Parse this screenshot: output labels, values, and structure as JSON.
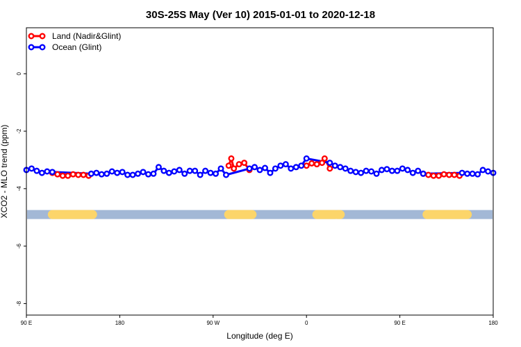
{
  "chart_data": {
    "type": "line",
    "title": "30S-25S May (Ver 10)   2015-01-01 to 2020-12-18",
    "xlabel": "Longitude (deg E)",
    "ylabel": "XCO2 - MLO trend (ppm)",
    "xlim": [
      90,
      450
    ],
    "ylim": [
      -8.4,
      1.6
    ],
    "x_ticks": [
      {
        "value": 90,
        "label": "90 E"
      },
      {
        "value": 162,
        "label": "180"
      },
      {
        "value": 234,
        "label": "90 W"
      },
      {
        "value": 306,
        "label": "0"
      },
      {
        "value": 378,
        "label": "90 E"
      },
      {
        "value": 450,
        "label": "180"
      }
    ],
    "y_ticks": [
      {
        "value": 0,
        "label": "0"
      },
      {
        "value": -2,
        "label": "-2"
      },
      {
        "value": -4,
        "label": "-4"
      },
      {
        "value": -6,
        "label": "-6"
      },
      {
        "value": -8,
        "label": "-8"
      }
    ],
    "legend_position": "top-left",
    "grid": false,
    "series": [
      {
        "name": "Land (Nadir&Glint)",
        "color": "#ff0000",
        "segments": [
          {
            "x": [
              110,
              114,
              118,
              122,
              126,
              130,
              134,
              138
            ],
            "y": [
              -3.45,
              -3.5,
              -3.55,
              -3.55,
              -3.5,
              -3.52,
              -3.52,
              -3.55
            ]
          },
          {
            "x": [
              246,
              248,
              250,
              254,
              258,
              262
            ],
            "y": [
              -3.2,
              -2.95,
              -3.3,
              -3.15,
              -3.1,
              -3.35
            ]
          },
          {
            "x": [
              306,
              310,
              314,
              318,
              320,
              324
            ],
            "y": [
              -3.2,
              -3.12,
              -3.15,
              -3.1,
              -2.95,
              -3.3
            ]
          },
          {
            "x": [
              396,
              400,
              404,
              408,
              412,
              416,
              420,
              424
            ],
            "y": [
              -3.48,
              -3.52,
              -3.55,
              -3.55,
              -3.5,
              -3.52,
              -3.52,
              -3.55
            ]
          }
        ]
      },
      {
        "name": "Ocean (Glint)",
        "color": "#0000ff",
        "x": [
          90,
          94,
          98,
          102,
          106,
          110,
          140,
          144,
          148,
          152,
          156,
          160,
          164,
          168,
          172,
          176,
          180,
          184,
          188,
          192,
          196,
          200,
          204,
          208,
          212,
          216,
          220,
          224,
          228,
          232,
          236,
          240,
          244,
          262,
          266,
          270,
          274,
          278,
          282,
          286,
          290,
          294,
          298,
          302,
          306,
          324,
          328,
          332,
          336,
          340,
          344,
          348,
          352,
          356,
          360,
          364,
          368,
          372,
          376,
          380,
          384,
          388,
          392,
          396,
          426,
          430,
          434,
          438,
          442,
          446,
          450
        ],
        "y": [
          -3.35,
          -3.3,
          -3.38,
          -3.45,
          -3.4,
          -3.42,
          -3.48,
          -3.45,
          -3.5,
          -3.48,
          -3.4,
          -3.45,
          -3.42,
          -3.52,
          -3.52,
          -3.48,
          -3.42,
          -3.5,
          -3.48,
          -3.25,
          -3.38,
          -3.45,
          -3.4,
          -3.35,
          -3.48,
          -3.38,
          -3.38,
          -3.52,
          -3.38,
          -3.45,
          -3.48,
          -3.3,
          -3.52,
          -3.3,
          -3.25,
          -3.35,
          -3.28,
          -3.45,
          -3.3,
          -3.2,
          -3.15,
          -3.3,
          -3.25,
          -3.2,
          -2.95,
          -3.1,
          -3.2,
          -3.25,
          -3.3,
          -3.38,
          -3.42,
          -3.45,
          -3.38,
          -3.4,
          -3.48,
          -3.35,
          -3.32,
          -3.38,
          -3.38,
          -3.3,
          -3.35,
          -3.45,
          -3.38,
          -3.48,
          -3.45,
          -3.48,
          -3.48,
          -3.5,
          -3.35,
          -3.4,
          -3.45
        ]
      }
    ],
    "land_ocean_band": {
      "y": -4.9,
      "ocean_color": "#a3b8d6",
      "land_color": "#fcd56a",
      "land_x_ranges": [
        [
          110,
          141
        ],
        [
          246,
          264
        ],
        [
          314,
          328
        ],
        [
          330,
          332
        ],
        [
          399,
          430
        ]
      ]
    }
  }
}
